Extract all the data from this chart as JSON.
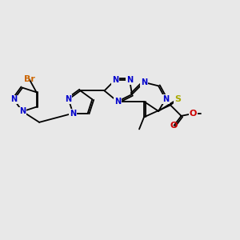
{
  "background_color": "#e8e8e8",
  "figsize": [
    3.0,
    3.0
  ],
  "dpi": 100,
  "colors": {
    "C": "black",
    "N": "#0000cc",
    "S": "#aaaa00",
    "O": "#cc0000",
    "Br": "#cc6600"
  }
}
